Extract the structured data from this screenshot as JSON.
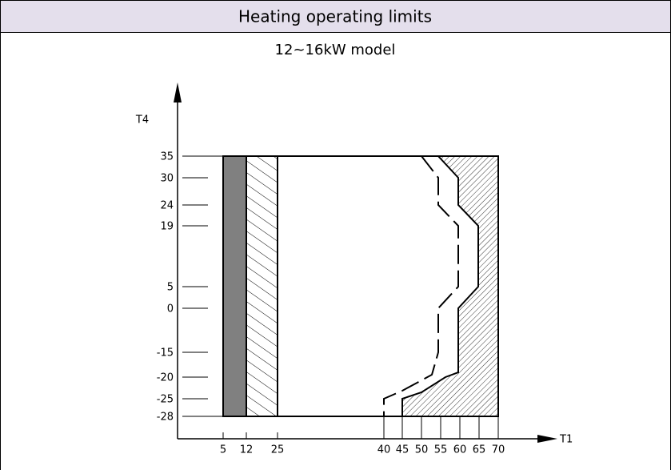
{
  "header": {
    "title": "Heating operating limits"
  },
  "subtitle": "12~16kW model",
  "diagram": {
    "y_axis_label": "T4",
    "x_axis_label": "T1",
    "y_ticks": [
      35,
      30,
      24,
      19,
      5,
      0,
      -15,
      -20,
      -25,
      -28
    ],
    "x_ticks": [
      5,
      12,
      25,
      40,
      45,
      50,
      55,
      60,
      65,
      70
    ]
  }
}
